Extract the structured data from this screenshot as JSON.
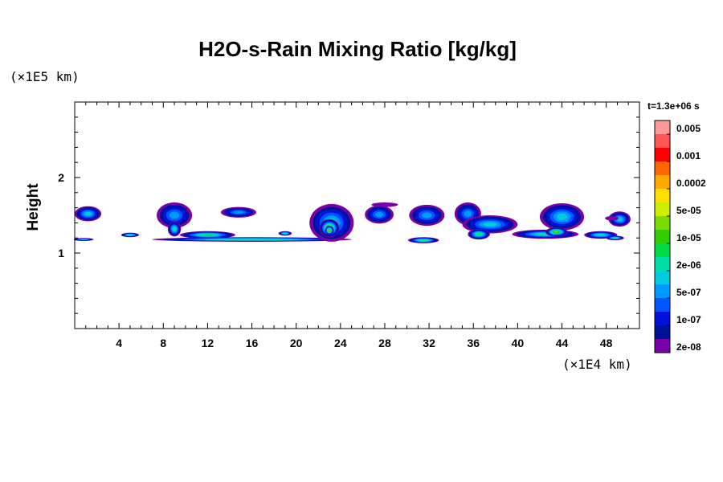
{
  "chart_data": {
    "type": "heatmap",
    "title": "H2O-s-Rain Mixing Ratio [kg/kg]",
    "ylabel": "Height",
    "xlabel": "",
    "x_unit": "(×1E4 km)",
    "y_unit": "(×1E5 km)",
    "time_label": "t=1.3e+06 s",
    "xlim": [
      0,
      51
    ],
    "ylim": [
      0,
      3
    ],
    "x_ticks": [
      "4",
      "8",
      "12",
      "16",
      "20",
      "24",
      "28",
      "32",
      "36",
      "40",
      "44",
      "48"
    ],
    "y_ticks": [
      "1",
      "2"
    ],
    "colorbar": {
      "labels": [
        "0.005",
        "0.001",
        "0.0002",
        "5e-05",
        "1e-05",
        "2e-06",
        "5e-07",
        "1e-07",
        "2e-08"
      ],
      "colors": [
        "#ff9999",
        "#ff5555",
        "#ff0000",
        "#ff6600",
        "#ffaa00",
        "#ffdd00",
        "#ccee00",
        "#77dd00",
        "#33cc00",
        "#00dd44",
        "#00ddaa",
        "#00ccdd",
        "#0099ff",
        "#0055ff",
        "#0011dd",
        "#001199",
        "#7a00a8"
      ]
    },
    "clouds": [
      {
        "x": 1.2,
        "y": 1.52,
        "rx": 1.2,
        "ry": 0.1,
        "level": 10
      },
      {
        "x": 0.8,
        "y": 1.18,
        "rx": 0.9,
        "ry": 0.02,
        "level": 9
      },
      {
        "x": 5.0,
        "y": 1.24,
        "rx": 0.8,
        "ry": 0.03,
        "level": 8
      },
      {
        "x": 9.0,
        "y": 1.5,
        "rx": 1.6,
        "ry": 0.17,
        "level": 11
      },
      {
        "x": 9.0,
        "y": 1.32,
        "rx": 0.6,
        "ry": 0.1,
        "level": 9
      },
      {
        "x": 12.0,
        "y": 1.24,
        "rx": 2.5,
        "ry": 0.05,
        "level": 8
      },
      {
        "x": 14.8,
        "y": 1.54,
        "rx": 1.6,
        "ry": 0.07,
        "level": 11
      },
      {
        "x": 16.0,
        "y": 1.18,
        "rx": 9.0,
        "ry": 0.03,
        "level": 7
      },
      {
        "x": 19.0,
        "y": 1.26,
        "rx": 0.6,
        "ry": 0.03,
        "level": 8
      },
      {
        "x": 23.2,
        "y": 1.4,
        "rx": 2.0,
        "ry": 0.25,
        "level": 10
      },
      {
        "x": 23.0,
        "y": 1.33,
        "rx": 0.9,
        "ry": 0.12,
        "level": 6
      },
      {
        "x": 23.0,
        "y": 1.3,
        "rx": 0.4,
        "ry": 0.06,
        "level": 5
      },
      {
        "x": 27.5,
        "y": 1.51,
        "rx": 1.3,
        "ry": 0.12,
        "level": 11
      },
      {
        "x": 28.0,
        "y": 1.64,
        "rx": 1.2,
        "ry": 0.03,
        "level": 15
      },
      {
        "x": 31.5,
        "y": 1.17,
        "rx": 1.4,
        "ry": 0.04,
        "level": 8
      },
      {
        "x": 31.8,
        "y": 1.5,
        "rx": 1.6,
        "ry": 0.14,
        "level": 11
      },
      {
        "x": 35.5,
        "y": 1.52,
        "rx": 1.2,
        "ry": 0.15,
        "level": 11
      },
      {
        "x": 37.5,
        "y": 1.38,
        "rx": 2.5,
        "ry": 0.12,
        "level": 10
      },
      {
        "x": 36.5,
        "y": 1.25,
        "rx": 1.0,
        "ry": 0.07,
        "level": 8
      },
      {
        "x": 44.0,
        "y": 1.48,
        "rx": 2.0,
        "ry": 0.18,
        "level": 10
      },
      {
        "x": 42.5,
        "y": 1.25,
        "rx": 3.0,
        "ry": 0.06,
        "level": 9
      },
      {
        "x": 43.5,
        "y": 1.28,
        "rx": 1.0,
        "ry": 0.06,
        "level": 6
      },
      {
        "x": 47.5,
        "y": 1.24,
        "rx": 1.5,
        "ry": 0.05,
        "level": 9
      },
      {
        "x": 49.2,
        "y": 1.45,
        "rx": 1.0,
        "ry": 0.1,
        "level": 10
      },
      {
        "x": 48.5,
        "y": 1.46,
        "rx": 0.6,
        "ry": 0.03,
        "level": 15
      },
      {
        "x": 48.8,
        "y": 1.2,
        "rx": 0.8,
        "ry": 0.03,
        "level": 8
      }
    ]
  }
}
